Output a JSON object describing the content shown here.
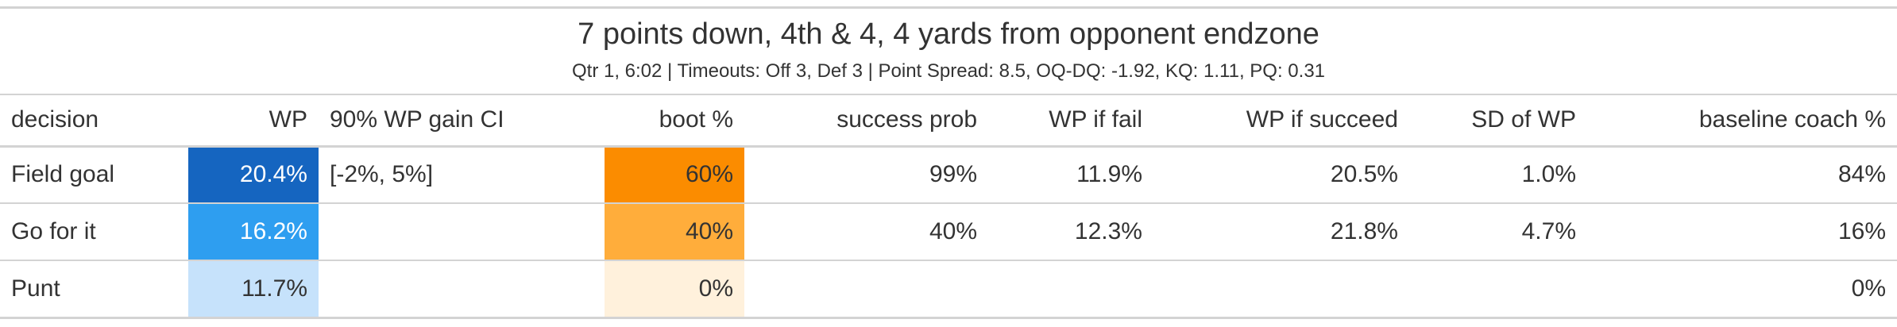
{
  "title": "7 points down, 4th & 4, 4 yards from opponent endzone",
  "subtitle": "Qtr 1, 6:02 | Timeouts: Off 3, Def 3 | Point Spread: 8.5, OQ-DQ: -1.92, KQ: 1.11, PQ: 0.31",
  "columns": {
    "decision": "decision",
    "wp": "WP",
    "ci": "90% WP gain CI",
    "boot": "boot %",
    "success_prob": "success prob",
    "wp_fail": "WP if fail",
    "wp_succeed": "WP if succeed",
    "sd_wp": "SD of WP",
    "baseline": "baseline coach %"
  },
  "colors": {
    "wp": [
      "#1565c0",
      "#2e9ef0",
      "#c6e2fb"
    ],
    "boot": [
      "#fb8c00",
      "#ffad3b",
      "#fff1dc"
    ],
    "wp_text": [
      "#ffffff",
      "#ffffff",
      "#333333"
    ],
    "boot_text": [
      "#333333",
      "#333333",
      "#333333"
    ]
  },
  "rows": [
    {
      "decision": "Field goal",
      "wp": "20.4%",
      "ci": "[-2%, 5%]",
      "boot": "60%",
      "success_prob": "99%",
      "wp_fail": "11.9%",
      "wp_succeed": "20.5%",
      "sd_wp": "1.0%",
      "baseline": "84%"
    },
    {
      "decision": "Go for it",
      "wp": "16.2%",
      "ci": "",
      "boot": "40%",
      "success_prob": "40%",
      "wp_fail": "12.3%",
      "wp_succeed": "21.8%",
      "sd_wp": "4.7%",
      "baseline": "16%"
    },
    {
      "decision": "Punt",
      "wp": "11.7%",
      "ci": "",
      "boot": "0%",
      "success_prob": "",
      "wp_fail": "",
      "wp_succeed": "",
      "sd_wp": "",
      "baseline": "0%"
    }
  ]
}
